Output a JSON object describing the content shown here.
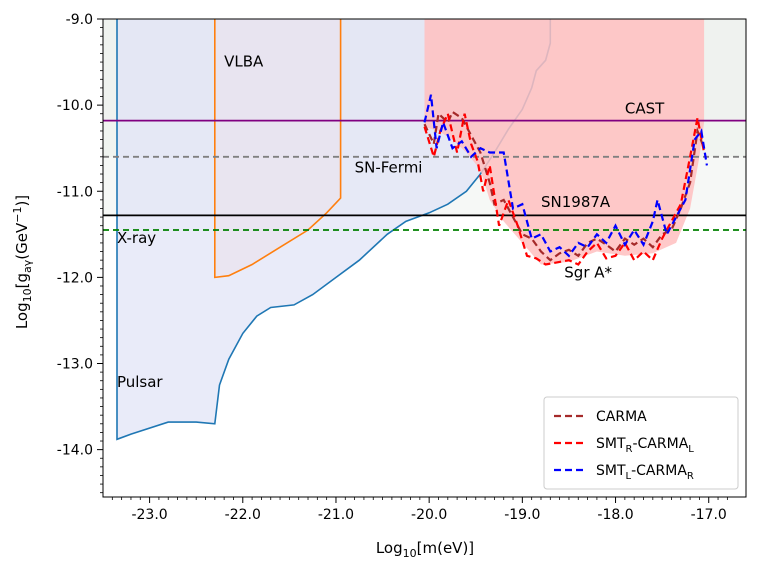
{
  "chart_data": {
    "type": "area",
    "title": "",
    "xlabel": "Log10[m(eV)]",
    "ylabel": "Log10[gaγ(GeV−1)]",
    "xlim": [
      -23.5,
      -16.6
    ],
    "ylim": [
      -14.55,
      -9.0
    ],
    "x_ticks": [
      -23.0,
      -22.0,
      -21.0,
      -20.0,
      -19.0,
      -18.0,
      -17.0
    ],
    "x_tick_labels": [
      "-23.0",
      "-22.0",
      "-21.0",
      "-20.0",
      "-19.0",
      "-18.0",
      "-17.0"
    ],
    "y_ticks": [
      -9.0,
      -10.0,
      -11.0,
      -12.0,
      -13.0,
      -14.0
    ],
    "y_tick_labels": [
      "-9.0",
      "-10.0",
      "-11.0",
      "-12.0",
      "-13.0",
      "-14.0"
    ],
    "grid": false,
    "legend_position": "lower-right",
    "horizontal_limits": [
      {
        "name": "CAST",
        "y": -10.18,
        "color": "#800080",
        "style": "solid",
        "fill": "#f3e6f3"
      },
      {
        "name": "SN-Fermi",
        "y": -10.6,
        "color": "#808080",
        "style": "dashed",
        "fill": "#e8f0e8"
      },
      {
        "name": "SN1987A",
        "y": -11.28,
        "color": "#000000",
        "style": "solid",
        "fill": "#eef3ee"
      },
      {
        "name": "X-ray",
        "y": -11.45,
        "color": "#008000",
        "style": "dashed",
        "fill": ""
      }
    ],
    "regions": [
      {
        "name": "Pulsar",
        "color": "#1f77b4",
        "fill": "#dfe3f7",
        "boundary": [
          [
            -23.35,
            -9.0
          ],
          [
            -23.35,
            -13.88
          ],
          [
            -23.2,
            -13.82
          ],
          [
            -22.8,
            -13.68
          ],
          [
            -22.5,
            -13.68
          ],
          [
            -22.3,
            -13.7
          ],
          [
            -22.25,
            -13.25
          ],
          [
            -22.15,
            -12.95
          ],
          [
            -22.0,
            -12.65
          ],
          [
            -21.85,
            -12.45
          ],
          [
            -21.7,
            -12.35
          ],
          [
            -21.45,
            -12.32
          ],
          [
            -21.25,
            -12.2
          ],
          [
            -21.0,
            -12.0
          ],
          [
            -20.75,
            -11.8
          ],
          [
            -20.45,
            -11.5
          ],
          [
            -20.25,
            -11.35
          ],
          [
            -20.0,
            -11.25
          ],
          [
            -19.8,
            -11.15
          ],
          [
            -19.6,
            -11.0
          ],
          [
            -19.45,
            -10.8
          ],
          [
            -19.3,
            -10.55
          ],
          [
            -19.15,
            -10.28
          ],
          [
            -19.0,
            -10.05
          ],
          [
            -18.9,
            -9.8
          ],
          [
            -18.85,
            -9.6
          ],
          [
            -18.75,
            -9.48
          ],
          [
            -18.7,
            -9.28
          ],
          [
            -18.7,
            -9.0
          ]
        ]
      },
      {
        "name": "VLBA",
        "color": "#ff7f0e",
        "fill": "#e9e3ee",
        "boundary": [
          [
            -22.3,
            -9.0
          ],
          [
            -22.3,
            -12.0
          ],
          [
            -22.15,
            -11.98
          ],
          [
            -21.9,
            -11.85
          ],
          [
            -21.6,
            -11.65
          ],
          [
            -21.3,
            -11.45
          ],
          [
            -21.1,
            -11.25
          ],
          [
            -20.95,
            -11.08
          ],
          [
            -20.95,
            -9.0
          ]
        ]
      },
      {
        "name": "Sgr A*",
        "color": "#f4a6a6",
        "fill": "#ffc0c0",
        "boundary": [
          [
            -20.05,
            -9.0
          ],
          [
            -20.05,
            -10.25
          ],
          [
            -19.9,
            -10.3
          ],
          [
            -19.75,
            -10.4
          ],
          [
            -19.6,
            -10.55
          ],
          [
            -19.45,
            -10.75
          ],
          [
            -19.35,
            -11.1
          ],
          [
            -19.2,
            -11.35
          ],
          [
            -19.0,
            -11.6
          ],
          [
            -18.8,
            -11.85
          ],
          [
            -18.5,
            -11.82
          ],
          [
            -18.2,
            -11.7
          ],
          [
            -17.9,
            -11.75
          ],
          [
            -17.6,
            -11.72
          ],
          [
            -17.35,
            -11.6
          ],
          [
            -17.2,
            -11.2
          ],
          [
            -17.1,
            -10.6
          ],
          [
            -17.05,
            -10.2
          ],
          [
            -17.05,
            -9.0
          ]
        ]
      }
    ],
    "series": [
      {
        "name": "CARMA",
        "legend_label": "CARMA",
        "color": "#a52a2a",
        "style": "dashed",
        "points": [
          [
            -20.05,
            -10.22
          ],
          [
            -19.95,
            -10.45
          ],
          [
            -19.9,
            -10.1
          ],
          [
            -19.8,
            -10.2
          ],
          [
            -19.75,
            -10.08
          ],
          [
            -19.65,
            -10.15
          ],
          [
            -19.55,
            -10.35
          ],
          [
            -19.45,
            -10.55
          ],
          [
            -19.35,
            -10.9
          ],
          [
            -19.3,
            -11.15
          ],
          [
            -19.2,
            -11.1
          ],
          [
            -19.1,
            -11.3
          ],
          [
            -19.0,
            -11.5
          ],
          [
            -18.9,
            -11.55
          ],
          [
            -18.8,
            -11.7
          ],
          [
            -18.7,
            -11.8
          ],
          [
            -18.6,
            -11.72
          ],
          [
            -18.5,
            -11.68
          ],
          [
            -18.4,
            -11.75
          ],
          [
            -18.3,
            -11.6
          ],
          [
            -18.2,
            -11.55
          ],
          [
            -18.1,
            -11.62
          ],
          [
            -18.0,
            -11.7
          ],
          [
            -17.9,
            -11.55
          ],
          [
            -17.8,
            -11.62
          ],
          [
            -17.7,
            -11.55
          ],
          [
            -17.6,
            -11.65
          ],
          [
            -17.5,
            -11.5
          ],
          [
            -17.4,
            -11.45
          ],
          [
            -17.3,
            -11.2
          ],
          [
            -17.2,
            -10.9
          ],
          [
            -17.12,
            -10.3
          ],
          [
            -17.05,
            -10.5
          ]
        ]
      },
      {
        "name": "SMT_R-CARMA_L",
        "legend_label": "SMTR-CARMAL",
        "legend_base": "SMT",
        "legend_sub1": "R",
        "legend_mid": "-CARMA",
        "legend_sub2": "L",
        "color": "#ff0000",
        "style": "dashed",
        "points": [
          [
            -20.05,
            -10.25
          ],
          [
            -19.95,
            -10.6
          ],
          [
            -19.88,
            -10.3
          ],
          [
            -19.8,
            -10.1
          ],
          [
            -19.7,
            -10.55
          ],
          [
            -19.62,
            -10.1
          ],
          [
            -19.55,
            -10.45
          ],
          [
            -19.48,
            -10.65
          ],
          [
            -19.42,
            -11.0
          ],
          [
            -19.35,
            -10.7
          ],
          [
            -19.25,
            -11.4
          ],
          [
            -19.15,
            -11.1
          ],
          [
            -19.05,
            -11.4
          ],
          [
            -18.95,
            -11.75
          ],
          [
            -18.85,
            -11.78
          ],
          [
            -18.75,
            -11.85
          ],
          [
            -18.6,
            -11.82
          ],
          [
            -18.5,
            -11.8
          ],
          [
            -18.4,
            -11.85
          ],
          [
            -18.3,
            -11.7
          ],
          [
            -18.2,
            -11.6
          ],
          [
            -18.1,
            -11.78
          ],
          [
            -18.0,
            -11.75
          ],
          [
            -17.9,
            -11.6
          ],
          [
            -17.8,
            -11.8
          ],
          [
            -17.7,
            -11.7
          ],
          [
            -17.6,
            -11.8
          ],
          [
            -17.5,
            -11.55
          ],
          [
            -17.4,
            -11.35
          ],
          [
            -17.3,
            -11.15
          ],
          [
            -17.2,
            -10.6
          ],
          [
            -17.12,
            -10.15
          ],
          [
            -17.05,
            -10.55
          ]
        ]
      },
      {
        "name": "SMT_L-CARMA_R",
        "legend_label": "SMTL-CARMAR",
        "legend_base": "SMT",
        "legend_sub1": "L",
        "legend_mid": "-CARMA",
        "legend_sub2": "R",
        "color": "#0000ff",
        "style": "dashed",
        "points": [
          [
            -20.05,
            -10.2
          ],
          [
            -19.98,
            -9.88
          ],
          [
            -19.92,
            -10.5
          ],
          [
            -19.85,
            -10.2
          ],
          [
            -19.75,
            -10.5
          ],
          [
            -19.65,
            -10.42
          ],
          [
            -19.55,
            -10.6
          ],
          [
            -19.45,
            -10.5
          ],
          [
            -19.35,
            -10.55
          ],
          [
            -19.2,
            -10.55
          ],
          [
            -19.1,
            -11.2
          ],
          [
            -19.0,
            -11.15
          ],
          [
            -18.95,
            -11.35
          ],
          [
            -18.9,
            -11.55
          ],
          [
            -18.8,
            -11.5
          ],
          [
            -18.7,
            -11.7
          ],
          [
            -18.6,
            -11.65
          ],
          [
            -18.5,
            -11.75
          ],
          [
            -18.4,
            -11.6
          ],
          [
            -18.3,
            -11.65
          ],
          [
            -18.2,
            -11.5
          ],
          [
            -18.1,
            -11.6
          ],
          [
            -18.0,
            -11.4
          ],
          [
            -17.9,
            -11.62
          ],
          [
            -17.8,
            -11.45
          ],
          [
            -17.7,
            -11.62
          ],
          [
            -17.6,
            -11.35
          ],
          [
            -17.55,
            -11.1
          ],
          [
            -17.45,
            -11.5
          ],
          [
            -17.35,
            -11.3
          ],
          [
            -17.25,
            -11.1
          ],
          [
            -17.15,
            -10.4
          ],
          [
            -17.08,
            -10.3
          ],
          [
            -17.02,
            -10.7
          ]
        ]
      }
    ],
    "annotations": [
      {
        "text": "VLBA",
        "x": -22.2,
        "y": -9.55
      },
      {
        "text": "CAST",
        "x": -17.9,
        "y": -10.1
      },
      {
        "text": "SN-Fermi",
        "x": -20.8,
        "y": -10.78
      },
      {
        "text": "SN1987A",
        "x": -18.8,
        "y": -11.18
      },
      {
        "text": "X-ray",
        "x": -23.35,
        "y": -11.6
      },
      {
        "text": "Sgr A*",
        "x": -18.55,
        "y": -12.0
      },
      {
        "text": "Pulsar",
        "x": -23.35,
        "y": -13.27
      }
    ]
  }
}
